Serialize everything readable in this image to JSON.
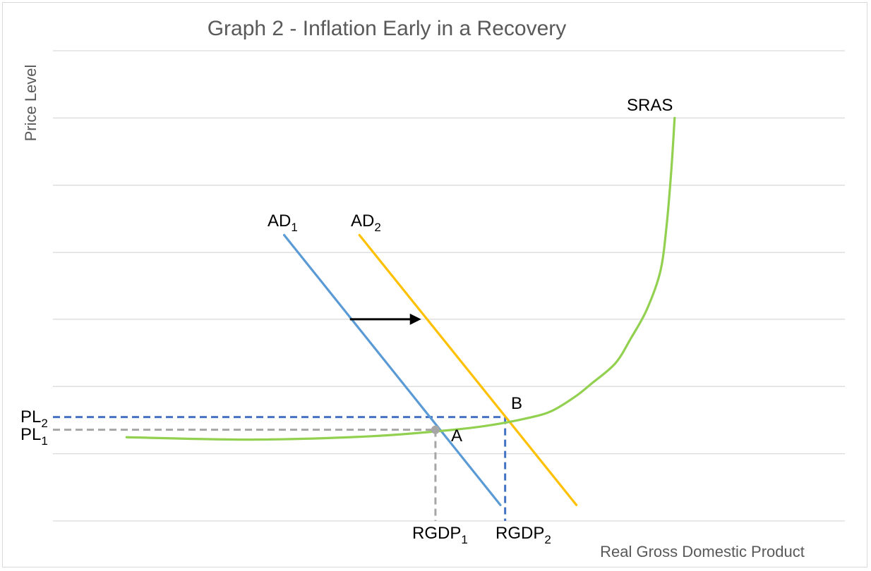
{
  "chart_data": {
    "type": "line",
    "title": "Graph 2 - Inflation Early in a Recovery",
    "xlabel": "Real Gross Domestic Product",
    "ylabel": "Price Level",
    "xlim": [
      0,
      100
    ],
    "ylim": [
      0,
      100
    ],
    "grid": true,
    "gridlines_y": [
      14.3,
      28.6,
      42.9,
      57.1,
      71.4,
      85.7,
      100
    ],
    "series": [
      {
        "name": "AD",
        "subscript": "1",
        "color": "#5b9bd5",
        "points": [
          [
            29.2,
            60.8
          ],
          [
            56.5,
            3.4
          ]
        ]
      },
      {
        "name": "AD",
        "subscript": "2",
        "color": "#ffc000",
        "points": [
          [
            38.7,
            60.8
          ],
          [
            66.1,
            3.4
          ]
        ]
      },
      {
        "name": "SRAS",
        "color": "#92d050",
        "points": [
          [
            9.3,
            17.8
          ],
          [
            25,
            17.3
          ],
          [
            40,
            18
          ],
          [
            50,
            19.3
          ],
          [
            55,
            20.3
          ],
          [
            60,
            21.9
          ],
          [
            63,
            23.4
          ],
          [
            66,
            26.5
          ],
          [
            68,
            29.2
          ],
          [
            71,
            33.5
          ],
          [
            73,
            38.9
          ],
          [
            75,
            45
          ],
          [
            76.7,
            53.1
          ],
          [
            77.5,
            63
          ],
          [
            78.1,
            75
          ],
          [
            78.5,
            85.7
          ]
        ]
      }
    ],
    "labels": {
      "sras": "SRAS",
      "ad1_base": "AD",
      "ad1_sub": "1",
      "ad2_base": "AD",
      "ad2_sub": "2",
      "point_a": "A",
      "point_b": "B",
      "pl1_base": "PL",
      "pl1_sub": "1",
      "pl2_base": "PL",
      "pl2_sub": "2",
      "rgdp1_base": "RGDP",
      "rgdp1_sub": "1",
      "rgdp2_base": "RGDP",
      "rgdp2_sub": "2"
    },
    "equilibria": [
      {
        "name": "A",
        "x": 48.3,
        "y": 19.4
      },
      {
        "name": "B",
        "x": 57.1,
        "y": 22.1
      }
    ],
    "shift_arrow": {
      "from": [
        37.5,
        42.9
      ],
      "to": [
        46.5,
        42.9
      ]
    },
    "colors": {
      "grid": "#d9d9d9",
      "pl1_guide": "#a6a6a6",
      "pl2_guide": "#4472c4",
      "point_a": "#a6a6a6",
      "arrow": "#000000"
    }
  }
}
